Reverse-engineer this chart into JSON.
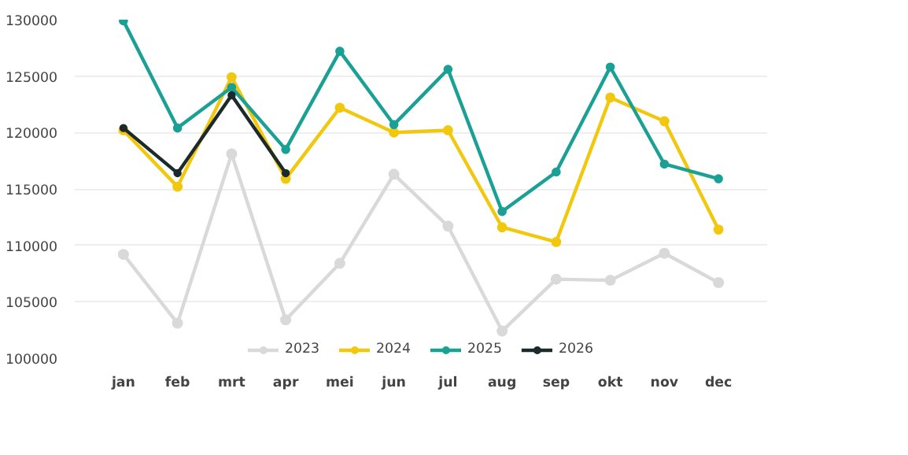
{
  "chart_data": {
    "type": "line",
    "categories": [
      "jan",
      "feb",
      "mrt",
      "apr",
      "mei",
      "jun",
      "jul",
      "aug",
      "sep",
      "okt",
      "nov",
      "dec"
    ],
    "series": [
      {
        "name": "2023",
        "color": "#d9d9d9",
        "values": [
          109200,
          103100,
          118100,
          103400,
          108400,
          116300,
          111700,
          102400,
          107000,
          106900,
          109300,
          106700
        ]
      },
      {
        "name": "2024",
        "color": "#f2c80f",
        "values": [
          120200,
          115200,
          124900,
          115900,
          122200,
          120000,
          120200,
          111600,
          110300,
          123100,
          121000,
          111400
        ]
      },
      {
        "name": "2025",
        "color": "#1aa094",
        "values": [
          129900,
          120400,
          124000,
          118500,
          127200,
          120700,
          125600,
          113000,
          116500,
          125800,
          117200,
          115900
        ]
      },
      {
        "name": "2026",
        "color": "#1b2a2b",
        "values": [
          120400,
          116400,
          123300,
          116400,
          null,
          null,
          null,
          null,
          null,
          null,
          null,
          null
        ]
      }
    ],
    "ylim": [
      100000,
      130000
    ],
    "yticks": [
      100000,
      105000,
      110000,
      115000,
      120000,
      125000,
      130000
    ],
    "grid": "y",
    "legend": "bottom",
    "marker": "circle",
    "line_style": "solid"
  }
}
